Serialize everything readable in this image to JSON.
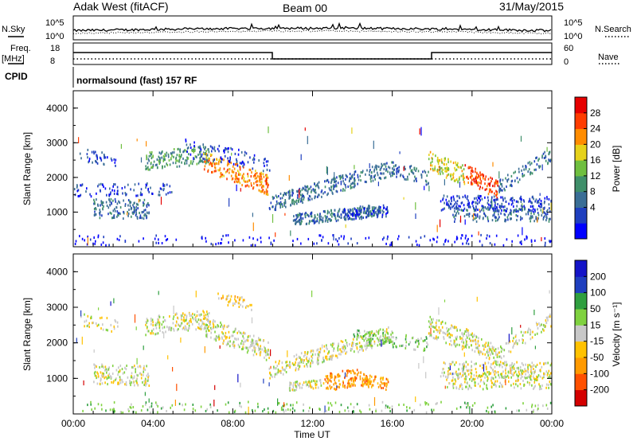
{
  "header": {
    "station": "Adak West (fitACF)",
    "beam": "Beam 00",
    "date": "31/May/2015"
  },
  "panels": {
    "nsky_label": "N.Sky",
    "nsearch_label": "N.Search",
    "freq_label_1": "Freq.",
    "freq_label_2": "[MHz]",
    "nave_label": "Nave",
    "cpid_label": "CPID",
    "cpid_text": "normalsound (fast) 157 RF",
    "noise_left_ticks": [
      "10^5",
      "10^0"
    ],
    "noise_right_ticks": [
      "10^5",
      "10^0"
    ],
    "freq_ticks": [
      "18",
      "8"
    ],
    "nave_ticks": [
      "60",
      "0"
    ]
  },
  "colors": {
    "power": [
      "#0000ff",
      "#1f3fbf",
      "#3a6e96",
      "#3f8f6a",
      "#6fbf3f",
      "#e6d21a",
      "#ff8c00",
      "#ff3c00",
      "#e60000"
    ],
    "velocity": [
      "#d40000",
      "#ff5000",
      "#ff9a00",
      "#ffc200",
      "#c8c8c8",
      "#7fd23f",
      "#2f9f3f",
      "#1f3fbf",
      "#1414c8"
    ],
    "grey_scatter": "#c0c0c0"
  },
  "chart_data": [
    {
      "type": "heatmap",
      "name": "power",
      "ylabel": "Slant Range [km]",
      "xlabel": "",
      "colorbar_label": "Power [dB]",
      "colorbar_ticks": [
        "28",
        "24",
        "20",
        "16",
        "12",
        "8",
        "4"
      ],
      "yticks": [
        "4000",
        "3000",
        "2000",
        "1000"
      ],
      "ylim": [
        0,
        4500
      ],
      "xlim": [
        0,
        24
      ],
      "bands": [
        {
          "x": [
            0.3,
            2.2
          ],
          "y0": 2700,
          "y1": 2500,
          "w": 180,
          "level": 1,
          "density": 0.35
        },
        {
          "x": [
            0.0,
            5.0
          ],
          "y0": 1650,
          "y1": 1700,
          "w": 180,
          "level": 1,
          "density": 0.3
        },
        {
          "x": [
            1.0,
            3.8
          ],
          "y0": 1150,
          "y1": 1100,
          "w": 280,
          "level": 2,
          "density": 0.9
        },
        {
          "x": [
            3.6,
            6.8
          ],
          "y0": 2500,
          "y1": 2700,
          "w": 260,
          "level": 3,
          "density": 0.9
        },
        {
          "x": [
            6.5,
            9.8
          ],
          "y0": 2500,
          "y1": 1800,
          "w": 280,
          "level": 6,
          "density": 1.0
        },
        {
          "x": [
            9.8,
            16.0
          ],
          "y0": 1250,
          "y1": 2300,
          "w": 230,
          "level": 2,
          "density": 0.85
        },
        {
          "x": [
            16.0,
            17.8
          ],
          "y0": 2300,
          "y1": 2000,
          "w": 220,
          "level": 2,
          "density": 0.6
        },
        {
          "x": [
            11.0,
            15.6
          ],
          "y0": 800,
          "y1": 1100,
          "w": 170,
          "level": 2,
          "density": 0.9
        },
        {
          "x": [
            13.5,
            15.8
          ],
          "y0": 950,
          "y1": 1050,
          "w": 150,
          "level": 1,
          "density": 0.5
        },
        {
          "x": [
            5.5,
            10.0
          ],
          "y0": 2900,
          "y1": 2400,
          "w": 240,
          "level": 1,
          "density": 0.35
        },
        {
          "x": [
            17.8,
            19.6
          ],
          "y0": 2500,
          "y1": 2100,
          "w": 280,
          "level": 5,
          "density": 1.0
        },
        {
          "x": [
            19.6,
            21.3
          ],
          "y0": 2200,
          "y1": 1650,
          "w": 260,
          "level": 7,
          "density": 1.0
        },
        {
          "x": [
            21.3,
            24.0
          ],
          "y0": 1750,
          "y1": 2700,
          "w": 200,
          "level": 2,
          "density": 0.6
        },
        {
          "x": [
            18.4,
            24.0
          ],
          "y0": 1300,
          "y1": 1250,
          "w": 220,
          "level": 1,
          "density": 0.7
        },
        {
          "x": [
            19.0,
            24.0
          ],
          "y0": 950,
          "y1": 950,
          "w": 200,
          "level": 2,
          "density": 0.5
        },
        {
          "x": [
            0.0,
            24.0
          ],
          "y0": 150,
          "y1": 150,
          "w": 220,
          "level": 0,
          "density": 0.15
        }
      ]
    },
    {
      "type": "heatmap",
      "name": "velocity",
      "ylabel": "Slant Range [km]",
      "xlabel": "Time UT",
      "colorbar_label": "Velocity [m s⁻¹]",
      "colorbar_ticks": [
        "200",
        "100",
        "50",
        "15",
        "-15",
        "-50",
        "-100",
        "-200"
      ],
      "yticks": [
        "4000",
        "3000",
        "2000",
        "1000"
      ],
      "xticks": [
        "00:00",
        "04:00",
        "08:00",
        "12:00",
        "16:00",
        "20:00",
        "00:00"
      ],
      "ylim": [
        0,
        4500
      ],
      "xlim": [
        0,
        24
      ],
      "bands": [
        {
          "x": [
            0.3,
            2.2
          ],
          "y0": 2700,
          "y1": 2500,
          "w": 180,
          "level": 4,
          "density": 0.3
        },
        {
          "x": [
            1.0,
            3.8
          ],
          "y0": 1150,
          "y1": 1100,
          "w": 280,
          "level": 4,
          "density": 0.9
        },
        {
          "x": [
            3.6,
            6.8
          ],
          "y0": 2500,
          "y1": 2700,
          "w": 260,
          "level": 4,
          "density": 0.9
        },
        {
          "x": [
            6.5,
            9.8
          ],
          "y0": 2500,
          "y1": 1800,
          "w": 280,
          "level": 4,
          "density": 1.0
        },
        {
          "x": [
            9.8,
            16.0
          ],
          "y0": 1250,
          "y1": 2300,
          "w": 230,
          "level": 4,
          "density": 0.8
        },
        {
          "x": [
            14.0,
            17.8
          ],
          "y0": 2200,
          "y1": 2000,
          "w": 200,
          "level": 5,
          "density": 0.5
        },
        {
          "x": [
            10.8,
            12.6
          ],
          "y0": 800,
          "y1": 900,
          "w": 120,
          "level": 4,
          "density": 0.6
        },
        {
          "x": [
            12.6,
            14.4
          ],
          "y0": 900,
          "y1": 1100,
          "w": 250,
          "level": 2,
          "density": 1.0
        },
        {
          "x": [
            14.4,
            15.8
          ],
          "y0": 1000,
          "y1": 850,
          "w": 170,
          "level": 2,
          "density": 0.9
        },
        {
          "x": [
            7.2,
            9.0
          ],
          "y0": 3300,
          "y1": 3100,
          "w": 160,
          "level": 3,
          "density": 0.4
        },
        {
          "x": [
            17.8,
            19.6
          ],
          "y0": 2500,
          "y1": 2100,
          "w": 280,
          "level": 4,
          "density": 1.0
        },
        {
          "x": [
            19.6,
            21.3
          ],
          "y0": 2200,
          "y1": 1650,
          "w": 260,
          "level": 4,
          "density": 1.0
        },
        {
          "x": [
            21.3,
            24.0
          ],
          "y0": 1750,
          "y1": 2700,
          "w": 200,
          "level": 4,
          "density": 0.5
        },
        {
          "x": [
            18.4,
            24.0
          ],
          "y0": 1300,
          "y1": 1250,
          "w": 220,
          "level": 4,
          "density": 0.6
        },
        {
          "x": [
            18.6,
            24.0
          ],
          "y0": 950,
          "y1": 950,
          "w": 220,
          "level": 4,
          "density": 0.6
        },
        {
          "x": [
            0.0,
            24.0
          ],
          "y0": 150,
          "y1": 150,
          "w": 220,
          "level": 5,
          "density": 0.2
        }
      ]
    }
  ]
}
